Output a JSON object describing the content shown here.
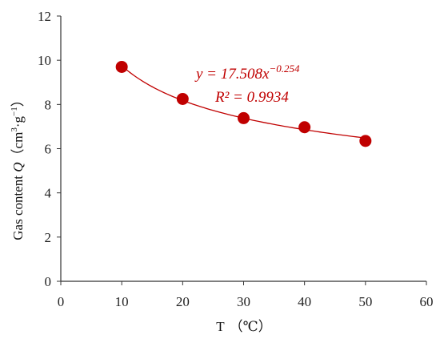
{
  "chart_data": {
    "type": "scatter",
    "x": [
      10,
      20,
      30,
      40,
      50
    ],
    "y": [
      9.7,
      8.25,
      7.38,
      6.97,
      6.35
    ],
    "xlim": [
      0,
      60
    ],
    "ylim": [
      0,
      12
    ],
    "xticks": [
      "0",
      "10",
      "20",
      "30",
      "40",
      "50",
      "60"
    ],
    "yticks": [
      "0",
      "2",
      "4",
      "6",
      "8",
      "10",
      "12"
    ],
    "xlabel": {
      "main": "T",
      "unit": "（℃）"
    },
    "ylabel": {
      "main": "Gas content ",
      "symbol": "Q",
      "unit_open": "（cm",
      "unit_exp1": "3",
      "unit_mid": "·g",
      "unit_exp2": "−1",
      "unit_close": "）"
    },
    "grid": false,
    "fit": {
      "type": "power",
      "a": 17.508,
      "b": -0.254,
      "equation_base": "y = 17.508x",
      "equation_exponent": "−0.254",
      "r_squared": "R² = 0.9934"
    },
    "colors": {
      "marker": "#c00000",
      "trendline": "#c00000",
      "annotation": "#c00000",
      "axis": "#333333"
    }
  }
}
